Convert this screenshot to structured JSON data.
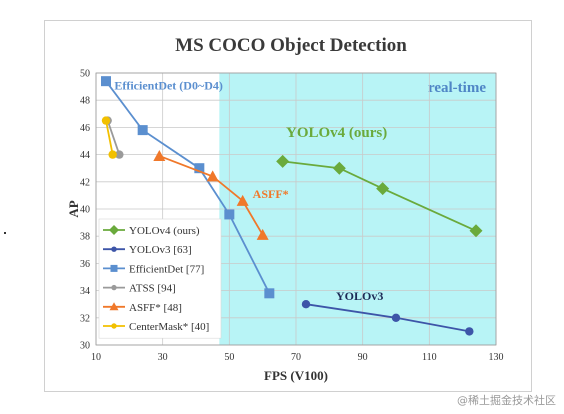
{
  "chart_data": {
    "type": "line",
    "title": "MS COCO Object Detection",
    "xlabel": "FPS (V100)",
    "ylabel": "AP",
    "xlim": [
      10,
      130
    ],
    "ylim": [
      30,
      50
    ],
    "xticks": [
      10,
      30,
      50,
      70,
      90,
      110,
      130
    ],
    "yticks": [
      30,
      32,
      34,
      36,
      38,
      40,
      42,
      44,
      46,
      48,
      50
    ],
    "realtime_region": {
      "label": "real-time",
      "x_from": 47,
      "color": "#b8f4f6"
    },
    "legend_position": "bottom-left",
    "series": [
      {
        "name": "YOLOv4 (ours)",
        "color": "#6aaa3c",
        "marker": "diamond",
        "points": [
          [
            66,
            43.5
          ],
          [
            83,
            43.0
          ],
          [
            96,
            41.5
          ],
          [
            124,
            38.4
          ]
        ],
        "annotation": {
          "text": "YOLOv4 (ours)",
          "x": 67,
          "y": 45.3
        }
      },
      {
        "name": "YOLOv3 [63]",
        "color": "#3d55a8",
        "marker": "circle",
        "points": [
          [
            73,
            33.0
          ],
          [
            100,
            32.0
          ],
          [
            122,
            31.0
          ]
        ],
        "annotation": {
          "text": "YOLOv3",
          "x": 82,
          "y": 33.3
        }
      },
      {
        "name": "EfficientDet [77]",
        "color": "#5b8fcf",
        "marker": "square",
        "points": [
          [
            13,
            49.4
          ],
          [
            24,
            45.8
          ],
          [
            41,
            43.0
          ],
          [
            50,
            39.6
          ],
          [
            62,
            33.8
          ]
        ],
        "annotation": {
          "text": "EfficientDet (D0~D4)",
          "x": 15.5,
          "y": 48.8
        }
      },
      {
        "name": "ATSS [94]",
        "color": "#9a9a9a",
        "marker": "circle",
        "points": [
          [
            13.5,
            46.5
          ],
          [
            17,
            44.0
          ]
        ]
      },
      {
        "name": "ASFF* [48]",
        "color": "#f0782a",
        "marker": "triangle",
        "points": [
          [
            29,
            43.9
          ],
          [
            45,
            42.4
          ],
          [
            54,
            40.6
          ],
          [
            60,
            38.1
          ]
        ],
        "annotation": {
          "text": "ASFF*",
          "x": 57,
          "y": 40.8
        }
      },
      {
        "name": "CenterMask* [40]",
        "color": "#f2c000",
        "marker": "circle",
        "points": [
          [
            13,
            46.5
          ],
          [
            15,
            44.0
          ]
        ]
      }
    ]
  },
  "watermark": "@稀土掘金技术社区"
}
